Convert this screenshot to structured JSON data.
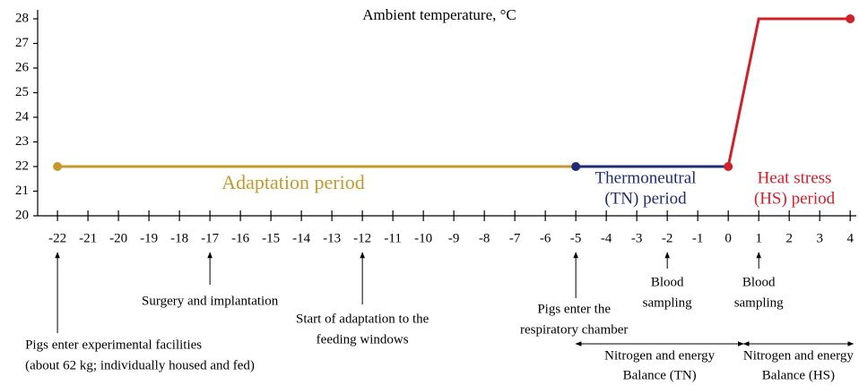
{
  "chart_data": {
    "type": "line",
    "title": "Ambient temperature, °C",
    "xlim": [
      -22.65,
      4.2
    ],
    "xticks": [
      -22,
      -21,
      -20,
      -19,
      -18,
      -17,
      -16,
      -15,
      -14,
      -13,
      -12,
      -11,
      -10,
      -9,
      -8,
      -7,
      -6,
      -5,
      -4,
      -3,
      -2,
      -1,
      0,
      1,
      2,
      3,
      4
    ],
    "ylim": [
      20,
      28
    ],
    "yticks": [
      20,
      21,
      22,
      23,
      24,
      25,
      26,
      27,
      28
    ],
    "series": [
      {
        "name": [
          "Adaptation period"
        ],
        "color": "#c49a2c",
        "x": [
          -22,
          -5
        ],
        "values": [
          22,
          22
        ],
        "markers": [
          0
        ]
      },
      {
        "name": [
          "Thermoneutral",
          "(TN) period"
        ],
        "color": "#1f2c74",
        "x": [
          -5,
          0
        ],
        "values": [
          22,
          22
        ],
        "markers": [
          0
        ]
      },
      {
        "name": [
          "Heat stress",
          "(HS) period"
        ],
        "color": "#d0202a",
        "x": [
          0,
          1,
          4
        ],
        "values": [
          22,
          28,
          28
        ],
        "markers": [
          0,
          2
        ]
      }
    ],
    "annotations": [
      {
        "x": -22,
        "text": [
          "Pigs enter experimental facilities",
          "(about 62 kg; individually housed and fed)"
        ]
      },
      {
        "x": -17,
        "text": [
          "Surgery and implantation"
        ]
      },
      {
        "x": -12,
        "text": [
          "Start of adaptation to the",
          "feeding windows"
        ]
      },
      {
        "x": -5,
        "text": [
          "Pigs enter the",
          "respiratory chamber"
        ]
      },
      {
        "x": -2,
        "text": [
          "Blood",
          "sampling"
        ]
      },
      {
        "x": 1,
        "text": [
          "Blood",
          "sampling"
        ]
      }
    ],
    "ranges": [
      {
        "from": -5,
        "to": 0.5,
        "text": [
          "Nitrogen and energy",
          "Balance (TN)"
        ]
      },
      {
        "from": 0.5,
        "to": 4.1,
        "text": [
          "Nitrogen and energy",
          "Balance (HS)"
        ]
      }
    ]
  }
}
